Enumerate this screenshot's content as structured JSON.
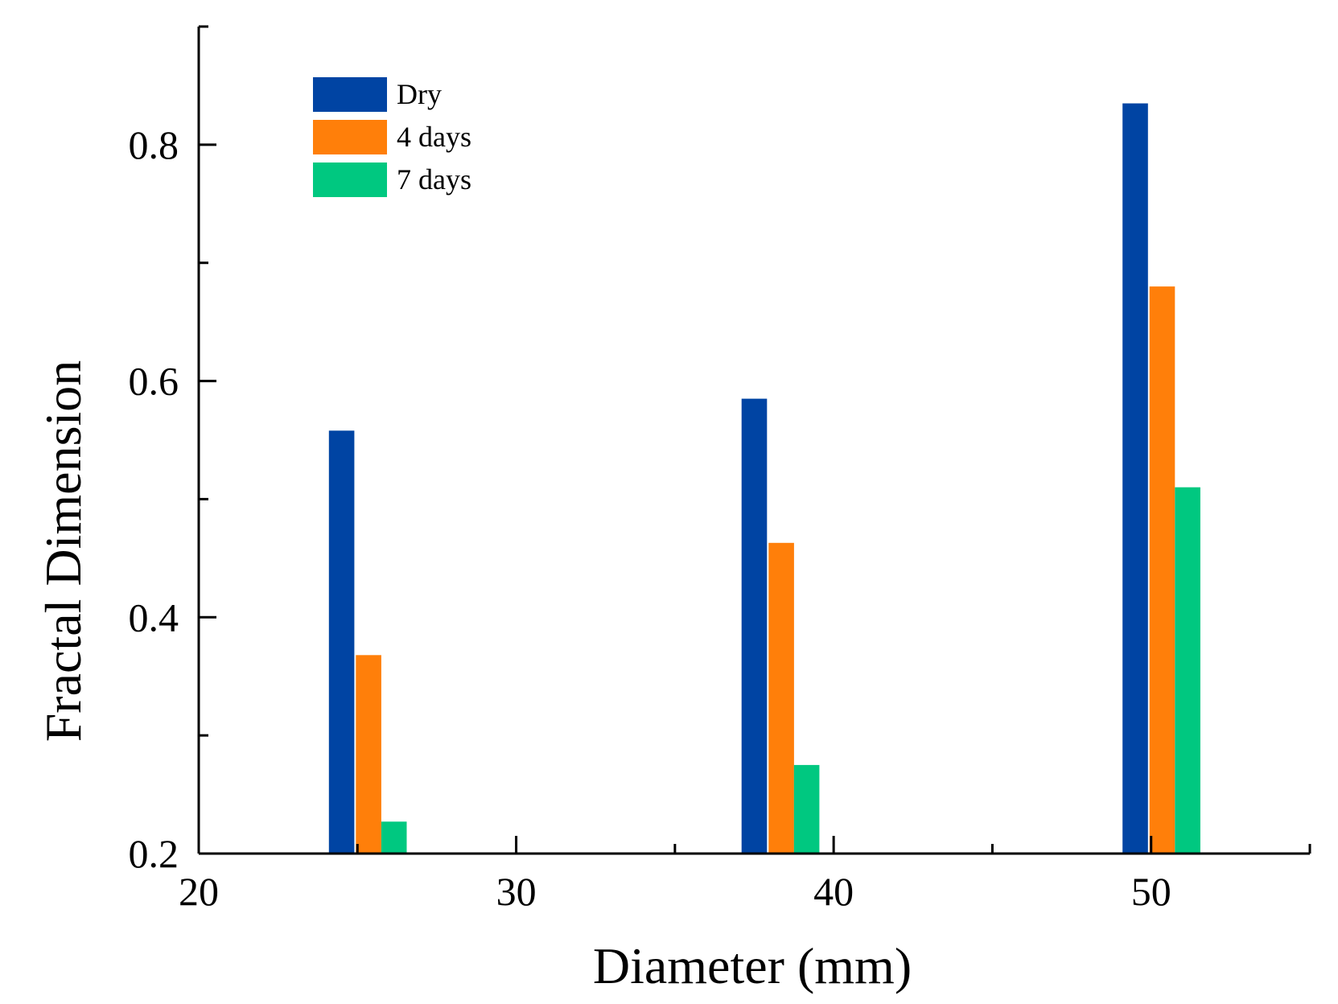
{
  "chart_data": {
    "type": "bar",
    "title": "",
    "xlabel": "Diameter (mm)",
    "ylabel": "Fractal Dimension",
    "xlim": [
      20,
      55
    ],
    "ylim": [
      0.2,
      0.9
    ],
    "x_ticks": [
      20,
      30,
      40,
      50
    ],
    "x_minor_ticks": [
      25,
      35,
      45,
      55
    ],
    "y_ticks": [
      0.2,
      0.4,
      0.6,
      0.8
    ],
    "y_minor_ticks": [
      0.3,
      0.5,
      0.7
    ],
    "x_tick_labels": [
      "20",
      "30",
      "40",
      "50"
    ],
    "y_tick_labels": [
      "0.2",
      "0.4",
      "0.6",
      "0.8"
    ],
    "bar_width": 0.8,
    "groups": [
      {
        "dry_x": 24.5,
        "x": [
          24.5,
          25.35,
          26.15
        ]
      },
      {
        "dry_x": 37.5,
        "x": [
          37.5,
          38.35,
          39.15
        ]
      },
      {
        "dry_x": 49.5,
        "x": [
          49.5,
          50.35,
          51.15
        ]
      }
    ],
    "series": [
      {
        "name": "Dry",
        "color": "#0044a3",
        "values": [
          0.558,
          0.585,
          0.835
        ]
      },
      {
        "name": "4 days",
        "color": "#ff7f0a",
        "values": [
          0.368,
          0.463,
          0.68
        ]
      },
      {
        "name": "7 days",
        "color": "#00c880",
        "values": [
          0.227,
          0.275,
          0.51
        ]
      }
    ],
    "legend": {
      "position": "top-left",
      "entries": [
        "Dry",
        "4 days",
        "7 days"
      ]
    },
    "grid": false
  }
}
